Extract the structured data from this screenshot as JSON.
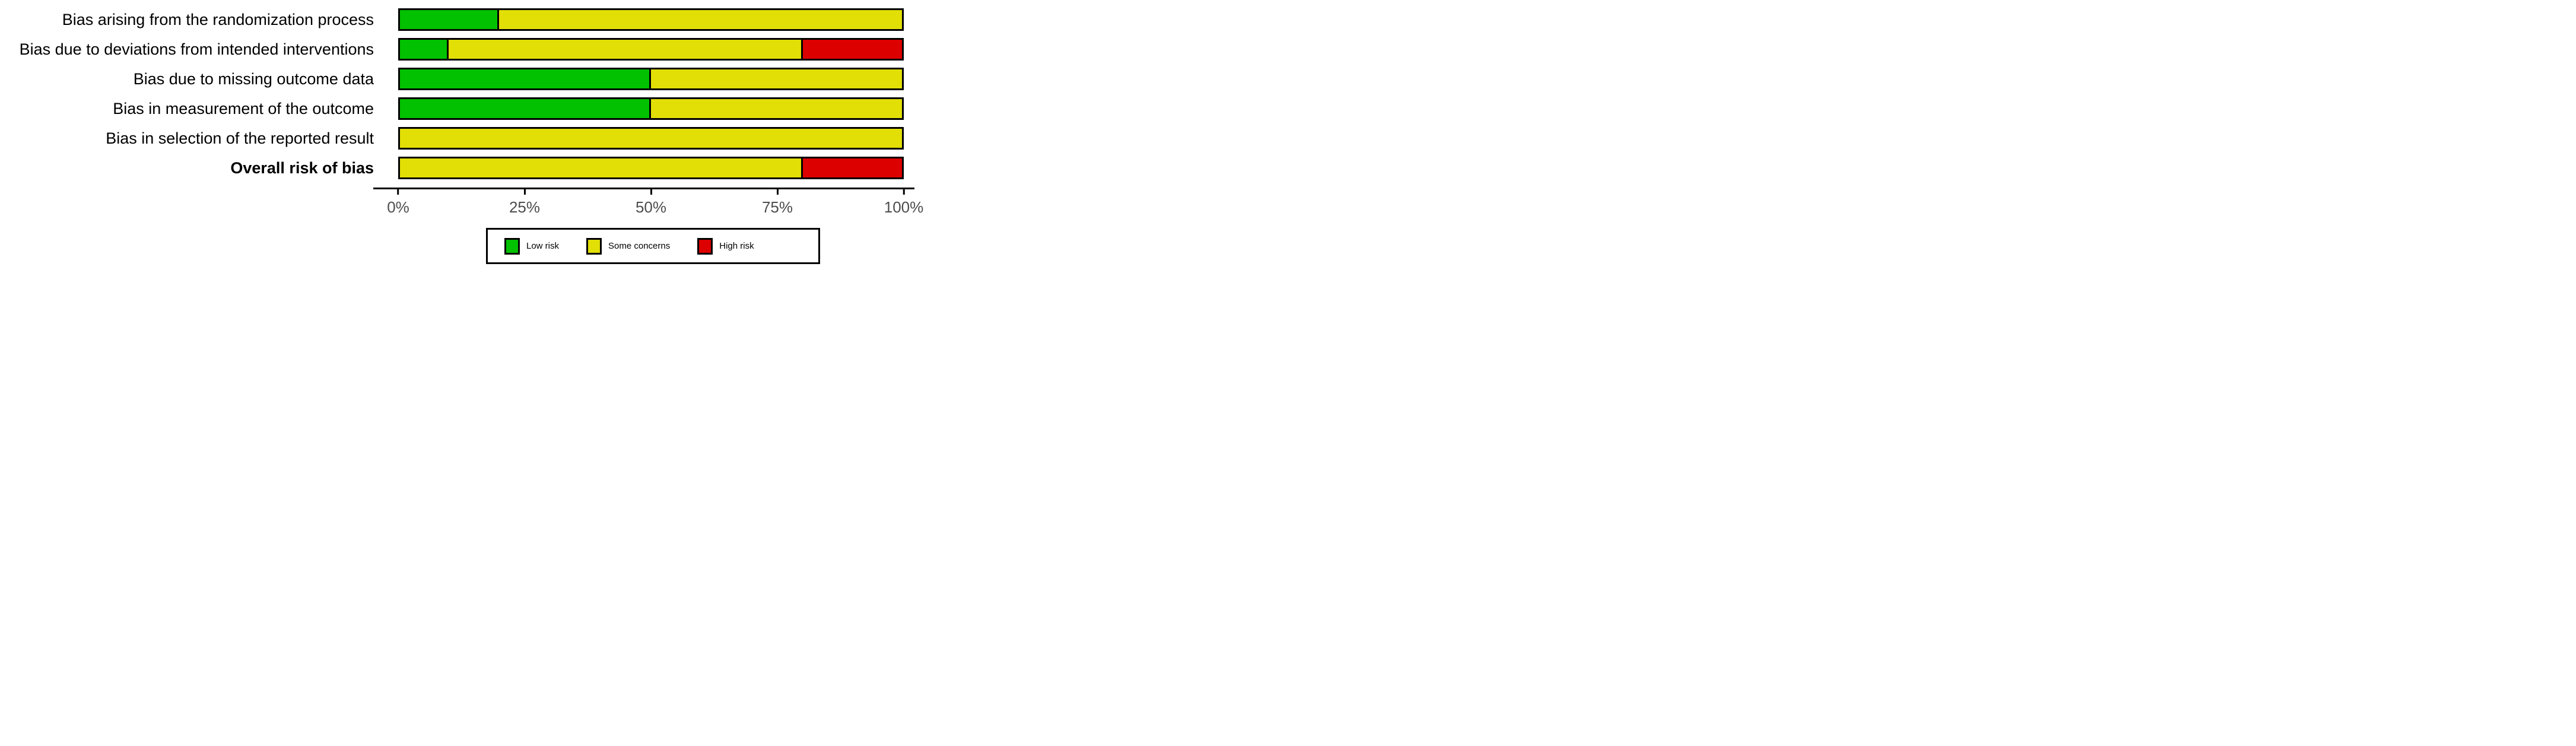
{
  "chart_data": {
    "type": "bar",
    "orientation": "horizontal",
    "stacked": true,
    "title": "",
    "xlabel": "",
    "ylabel": "",
    "xlim": [
      0,
      100
    ],
    "x_unit": "percent",
    "grid": false,
    "x_ticks": [
      {
        "label": "0%",
        "value": 0
      },
      {
        "label": "25%",
        "value": 25
      },
      {
        "label": "50%",
        "value": 50
      },
      {
        "label": "75%",
        "value": 75
      },
      {
        "label": "100%",
        "value": 100
      }
    ],
    "categories": [
      {
        "label": "Bias arising from the randomization process",
        "bold": false
      },
      {
        "label": "Bias due to deviations from intended interventions",
        "bold": false
      },
      {
        "label": "Bias due to missing outcome data",
        "bold": false
      },
      {
        "label": "Bias in measurement of the outcome",
        "bold": false
      },
      {
        "label": "Bias in selection of the reported result",
        "bold": false
      },
      {
        "label": "Overall risk of bias",
        "bold": true
      }
    ],
    "series": [
      {
        "name": "Low risk",
        "color": "#02C100",
        "values": [
          20,
          10,
          50,
          50,
          0,
          0
        ]
      },
      {
        "name": "Some concerns",
        "color": "#E2DF07",
        "values": [
          80,
          70,
          50,
          50,
          100,
          80
        ]
      },
      {
        "name": "High risk",
        "color": "#DD0000",
        "values": [
          0,
          20,
          0,
          0,
          0,
          20
        ]
      }
    ],
    "legend": {
      "position": "bottom",
      "items": [
        {
          "label": "Low risk",
          "color": "#02C100"
        },
        {
          "label": "Some concerns",
          "color": "#E2DF07"
        },
        {
          "label": "High risk",
          "color": "#DD0000"
        }
      ]
    }
  }
}
